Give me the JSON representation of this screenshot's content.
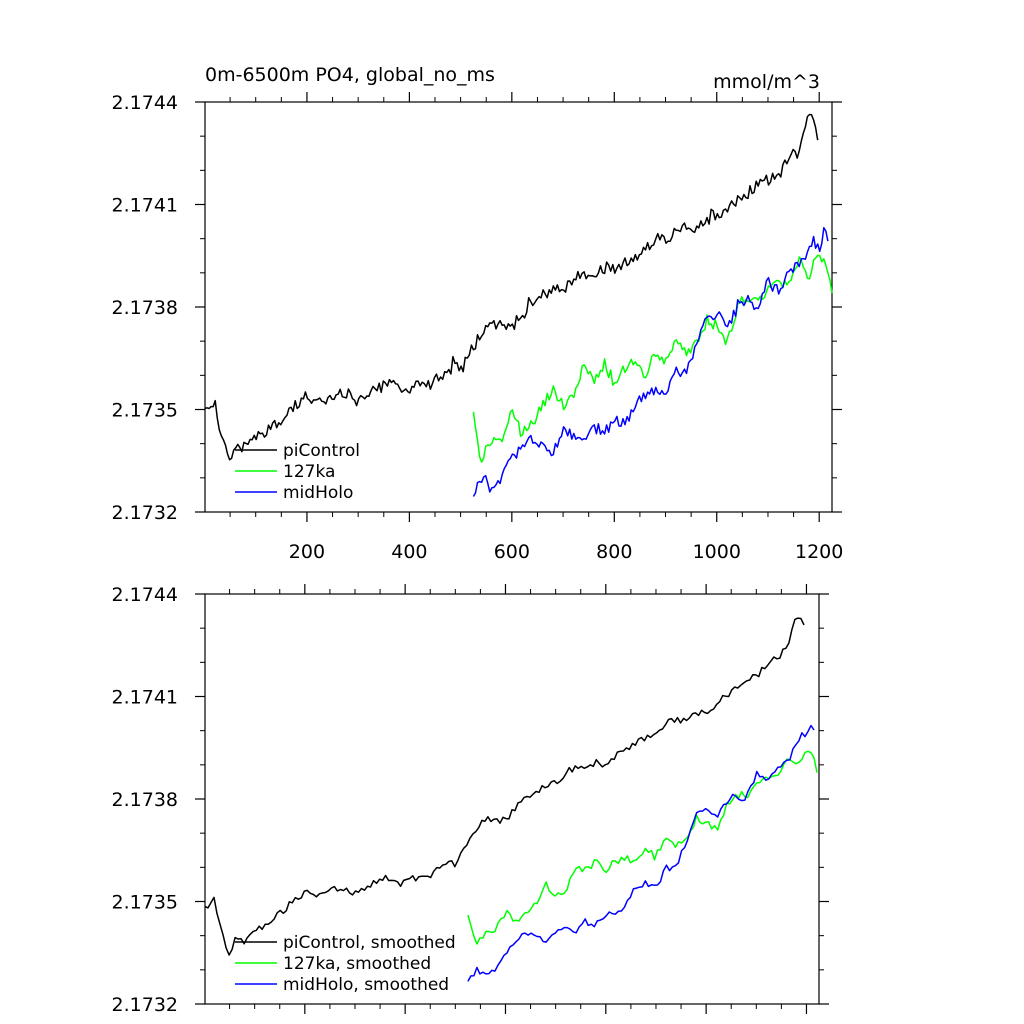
{
  "figure": {
    "title": "0m-6500m PO4, global_no_ms",
    "units": "mmol/m^3"
  },
  "chart_data": [
    {
      "type": "line",
      "title": "0m-6500m PO4, global_no_ms",
      "units": "mmol/m^3",
      "xlabel": "",
      "ylabel": "",
      "xlim": [
        1,
        1225
      ],
      "ylim": [
        2.1732,
        2.1744
      ],
      "x_ticks": [
        200,
        400,
        600,
        800,
        1000,
        1200
      ],
      "x_tick_labels": [
        "200",
        "400",
        "600",
        "800",
        "1000",
        "1200"
      ],
      "y_ticks": [
        2.1732,
        2.1735,
        2.1738,
        2.1741,
        2.1744
      ],
      "y_tick_labels": [
        "2.1732",
        "2.1735",
        "2.1738",
        "2.1741",
        "2.1744"
      ],
      "legend": "bottom-left",
      "grid": false,
      "series": [
        {
          "name": "piControl",
          "color": "#000000",
          "x": [
            1,
            20,
            40,
            50,
            60,
            80,
            100,
            130,
            160,
            190,
            200,
            230,
            260,
            290,
            300,
            330,
            360,
            390,
            400,
            430,
            460,
            490,
            500,
            530,
            560,
            580,
            600,
            630,
            660,
            690,
            700,
            730,
            760,
            790,
            800,
            830,
            860,
            890,
            900,
            930,
            960,
            990,
            1000,
            1030,
            1060,
            1090,
            1100,
            1130,
            1160,
            1180,
            1190,
            1200
          ],
          "y": [
            2.17349,
            2.17352,
            2.17338,
            2.17333,
            2.1734,
            2.17339,
            2.17342,
            2.17345,
            2.17349,
            2.17352,
            2.17354,
            2.17352,
            2.17355,
            2.17353,
            2.17352,
            2.17356,
            2.17358,
            2.17355,
            2.17356,
            2.17357,
            2.1736,
            2.17364,
            2.17361,
            2.1737,
            2.17376,
            2.17375,
            2.17374,
            2.1738,
            2.17383,
            2.17386,
            2.17384,
            2.1739,
            2.17389,
            2.17392,
            2.1739,
            2.17394,
            2.17397,
            2.174,
            2.17399,
            2.17404,
            2.17403,
            2.17407,
            2.17405,
            2.1741,
            2.17413,
            2.17418,
            2.17416,
            2.17421,
            2.17426,
            2.17437,
            2.17433,
            2.1743
          ]
        },
        {
          "name": "127ka",
          "color": "#00ff00",
          "x": [
            525,
            540,
            560,
            580,
            600,
            620,
            640,
            660,
            680,
            700,
            720,
            740,
            760,
            780,
            800,
            820,
            840,
            860,
            880,
            900,
            920,
            940,
            960,
            980,
            1000,
            1020,
            1040,
            1060,
            1080,
            1100,
            1120,
            1140,
            1160,
            1180,
            1200,
            1215,
            1225
          ],
          "y": [
            2.17348,
            2.17335,
            2.17342,
            2.17341,
            2.17349,
            2.17343,
            2.17346,
            2.17351,
            2.17356,
            2.17352,
            2.17353,
            2.17362,
            2.17359,
            2.17364,
            2.17358,
            2.17363,
            2.17364,
            2.1736,
            2.17367,
            2.17363,
            2.17371,
            2.17366,
            2.17369,
            2.17376,
            2.17374,
            2.1737,
            2.17379,
            2.17383,
            2.17382,
            2.17385,
            2.17387,
            2.17388,
            2.17394,
            2.17389,
            2.17396,
            2.17392,
            2.17384
          ]
        },
        {
          "name": "midHolo",
          "color": "#0000ff",
          "x": [
            525,
            540,
            560,
            580,
            600,
            620,
            640,
            660,
            680,
            700,
            720,
            740,
            760,
            780,
            800,
            820,
            840,
            860,
            880,
            900,
            920,
            940,
            960,
            980,
            1000,
            1020,
            1040,
            1060,
            1080,
            1100,
            1120,
            1140,
            1160,
            1180,
            1190,
            1200,
            1210,
            1220
          ],
          "y": [
            2.17325,
            2.1733,
            2.17327,
            2.17331,
            2.17336,
            2.17339,
            2.17342,
            2.1734,
            2.17338,
            2.17343,
            2.17342,
            2.17341,
            2.17344,
            2.17343,
            2.17347,
            2.17345,
            2.17351,
            2.17355,
            2.17356,
            2.17354,
            2.17362,
            2.17361,
            2.17368,
            2.17377,
            2.17378,
            2.17373,
            2.1738,
            2.17382,
            2.1738,
            2.17388,
            2.17385,
            2.17389,
            2.17392,
            2.17397,
            2.174,
            2.17398,
            2.17402,
            2.17399
          ]
        }
      ]
    },
    {
      "type": "line",
      "title": "",
      "xlabel": "",
      "ylabel": "",
      "xlim": [
        1,
        1225
      ],
      "ylim": [
        2.1732,
        2.1744
      ],
      "x_ticks": [
        200,
        400,
        600,
        800,
        1000,
        1200
      ],
      "y_ticks": [
        2.1732,
        2.1735,
        2.1738,
        2.1741,
        2.1744
      ],
      "y_tick_labels": [
        "2.1732",
        "2.1735",
        "2.1738",
        "2.1741",
        "2.1744"
      ],
      "legend": "bottom-left",
      "grid": false,
      "series": [
        {
          "name": "piControl, smoothed",
          "color": "#000000",
          "x": [
            1,
            20,
            40,
            50,
            60,
            80,
            100,
            130,
            160,
            190,
            200,
            230,
            260,
            290,
            300,
            330,
            360,
            390,
            400,
            430,
            460,
            490,
            500,
            530,
            560,
            580,
            600,
            630,
            660,
            690,
            700,
            730,
            760,
            790,
            800,
            830,
            860,
            890,
            900,
            930,
            960,
            990,
            1000,
            1030,
            1060,
            1090,
            1100,
            1130,
            1160,
            1180,
            1190,
            1200
          ],
          "y": [
            2.17348,
            2.1735,
            2.17338,
            2.17334,
            2.17339,
            2.17338,
            2.17341,
            2.17344,
            2.17348,
            2.17351,
            2.17353,
            2.17352,
            2.17354,
            2.17353,
            2.17352,
            2.17355,
            2.17357,
            2.17355,
            2.17356,
            2.17357,
            2.17359,
            2.17362,
            2.17361,
            2.17369,
            2.17374,
            2.17374,
            2.17374,
            2.17379,
            2.17382,
            2.17385,
            2.17384,
            2.17389,
            2.17389,
            2.17391,
            2.1739,
            2.17394,
            2.17396,
            2.17399,
            2.17399,
            2.17403,
            2.17403,
            2.17406,
            2.17405,
            2.17409,
            2.17412,
            2.17416,
            2.17416,
            2.1742,
            2.17424,
            2.17434,
            2.17432,
            2.1743
          ]
        },
        {
          "name": "127ka, smoothed",
          "color": "#00ff00",
          "x": [
            525,
            540,
            560,
            580,
            600,
            620,
            640,
            660,
            680,
            700,
            720,
            740,
            760,
            780,
            800,
            820,
            840,
            860,
            880,
            900,
            920,
            940,
            960,
            980,
            1000,
            1020,
            1040,
            1060,
            1080,
            1100,
            1120,
            1140,
            1160,
            1180,
            1200,
            1215,
            1225
          ],
          "y": [
            2.17346,
            2.17337,
            2.17341,
            2.17341,
            2.17347,
            2.17344,
            2.17346,
            2.1735,
            2.17355,
            2.17352,
            2.17353,
            2.1736,
            2.17359,
            2.17362,
            2.17359,
            2.17362,
            2.17363,
            2.17361,
            2.17366,
            2.17363,
            2.17369,
            2.17366,
            2.17369,
            2.17374,
            2.17373,
            2.17371,
            2.17378,
            2.17381,
            2.17381,
            2.17384,
            2.17386,
            2.17387,
            2.17392,
            2.17389,
            2.17394,
            2.17392,
            2.17385
          ]
        },
        {
          "name": "midHolo, smoothed",
          "color": "#0000ff",
          "x": [
            525,
            540,
            560,
            580,
            600,
            620,
            640,
            660,
            680,
            700,
            720,
            740,
            760,
            780,
            800,
            820,
            840,
            860,
            880,
            900,
            920,
            940,
            960,
            980,
            1000,
            1020,
            1040,
            1060,
            1080,
            1100,
            1120,
            1140,
            1160,
            1180,
            1190,
            1200,
            1210,
            1220
          ],
          "y": [
            2.17326,
            2.1733,
            2.17328,
            2.17331,
            2.17335,
            2.17338,
            2.17341,
            2.1734,
            2.17339,
            2.17342,
            2.17342,
            2.17341,
            2.17344,
            2.17343,
            2.17346,
            2.17346,
            2.1735,
            2.17354,
            2.17355,
            2.17354,
            2.1736,
            2.17361,
            2.17367,
            2.17375,
            2.17377,
            2.17374,
            2.17379,
            2.17381,
            2.1738,
            2.17387,
            2.17385,
            2.17388,
            2.17391,
            2.17396,
            2.17399,
            2.17398,
            2.17401,
            2.17399
          ]
        }
      ]
    }
  ]
}
